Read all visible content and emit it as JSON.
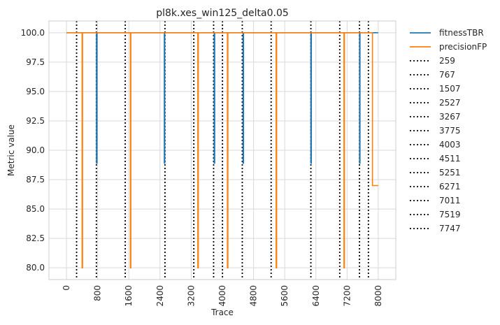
{
  "chart_data": {
    "type": "line",
    "title": "pl8k.xes_win125_delta0.05",
    "xlabel": "Trace",
    "ylabel": "Metric value",
    "xlim": [
      -450,
      8450
    ],
    "ylim": [
      79.0,
      101.0
    ],
    "xticks": [
      "0",
      "800",
      "1600",
      "2400",
      "3200",
      "4000",
      "4800",
      "5600",
      "6400",
      "7200",
      "8000"
    ],
    "xtick_values": [
      0,
      800,
      1600,
      2400,
      3200,
      4000,
      4800,
      5600,
      6400,
      7200,
      8000
    ],
    "yticks": [
      "80.0",
      "82.5",
      "85.0",
      "87.5",
      "90.0",
      "92.5",
      "95.0",
      "97.5",
      "100.0"
    ],
    "ytick_values": [
      80.0,
      82.5,
      85.0,
      87.5,
      90.0,
      92.5,
      95.0,
      97.5,
      100.0
    ],
    "grid": true,
    "legend_position": "outside-right",
    "series": [
      {
        "name": "fitnessTBR",
        "color": "#1f77b4",
        "dips": [
          {
            "x": 770,
            "min": 88.9
          },
          {
            "x": 2510,
            "min": 88.9
          },
          {
            "x": 3790,
            "min": 88.9
          },
          {
            "x": 4530,
            "min": 88.9
          },
          {
            "x": 6270,
            "min": 88.9
          },
          {
            "x": 7520,
            "min": 88.9
          }
        ],
        "x_start": 0,
        "x_end": 8000,
        "base": 100.0
      },
      {
        "name": "precisionFP",
        "color": "#ff7f0e",
        "dips": [
          {
            "x": 400,
            "min": 80.0
          },
          {
            "x": 1640,
            "min": 80.0
          },
          {
            "x": 3370,
            "min": 80.0
          },
          {
            "x": 4130,
            "min": 80.0
          },
          {
            "x": 5380,
            "min": 80.0
          },
          {
            "x": 7120,
            "min": 80.0
          }
        ],
        "x_start": 0,
        "x_end": 8000,
        "base": 100.0,
        "tail": {
          "x": 7850,
          "value": 87.0
        }
      }
    ],
    "drift_lines": {
      "style": "dotted",
      "color": "#000000",
      "values": [
        259,
        767,
        1507,
        2527,
        3267,
        3775,
        4003,
        4511,
        5251,
        6271,
        7011,
        7519,
        7747
      ],
      "labels": [
        "259",
        "767",
        "1507",
        "2527",
        "3267",
        "3775",
        "4003",
        "4511",
        "5251",
        "6271",
        "7011",
        "7519",
        "7747"
      ]
    }
  }
}
